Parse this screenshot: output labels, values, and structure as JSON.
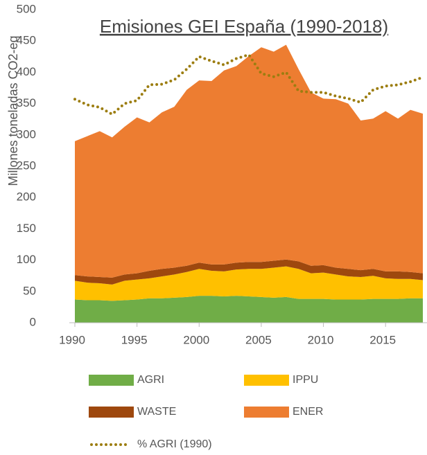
{
  "chart_data": {
    "type": "stacked_area",
    "title": "Emisiones GEI España (1990-2018)",
    "y_label": "Millones toneladas CO2-eq",
    "x": [
      1990,
      1991,
      1992,
      1993,
      1994,
      1995,
      1996,
      1997,
      1998,
      1999,
      2000,
      2001,
      2002,
      2003,
      2004,
      2005,
      2006,
      2007,
      2008,
      2009,
      2010,
      2011,
      2012,
      2013,
      2014,
      2015,
      2016,
      2017,
      2018
    ],
    "xlim": [
      1990,
      2018
    ],
    "xticks": [
      1990,
      1995,
      2000,
      2005,
      2010,
      2015
    ],
    "ylim": [
      0,
      500
    ],
    "yticks": [
      0,
      50,
      100,
      150,
      200,
      250,
      300,
      350,
      400,
      450,
      500
    ],
    "series": [
      {
        "name": "AGRI",
        "color": "#70ad47",
        "values": [
          37,
          36,
          36,
          35,
          36,
          37,
          39,
          39,
          40,
          41,
          43,
          43,
          42,
          43,
          42,
          41,
          40,
          41,
          38,
          38,
          38,
          37,
          37,
          37,
          38,
          38,
          38,
          39,
          39
        ]
      },
      {
        "name": "IPPU",
        "color": "#ffc000",
        "values": [
          30,
          28,
          27,
          26,
          31,
          32,
          32,
          35,
          37,
          40,
          43,
          40,
          40,
          42,
          44,
          45,
          48,
          49,
          48,
          41,
          42,
          40,
          37,
          36,
          37,
          33,
          32,
          31,
          29
        ]
      },
      {
        "name": "WASTE",
        "color": "#9e480e",
        "values": [
          9,
          10,
          10,
          11,
          10,
          10,
          12,
          12,
          11,
          10,
          10,
          10,
          11,
          11,
          11,
          11,
          11,
          11,
          12,
          12,
          12,
          11,
          12,
          11,
          11,
          11,
          12,
          11,
          11
        ]
      },
      {
        "name": "ENER",
        "color": "#ed7d31",
        "values": [
          214,
          224,
          233,
          224,
          236,
          249,
          237,
          250,
          257,
          281,
          291,
          293,
          310,
          314,
          329,
          343,
          334,
          343,
          307,
          277,
          266,
          269,
          264,
          239,
          240,
          256,
          244,
          259,
          255
        ]
      }
    ],
    "line_series": {
      "name": "% AGRI (1990)",
      "color": "#9c7d10",
      "style": "dotted",
      "values": [
        357,
        348,
        344,
        333,
        350,
        355,
        380,
        381,
        388,
        405,
        425,
        418,
        412,
        422,
        428,
        398,
        393,
        400,
        370,
        368,
        368,
        362,
        358,
        352,
        372,
        378,
        380,
        385,
        392
      ]
    }
  }
}
